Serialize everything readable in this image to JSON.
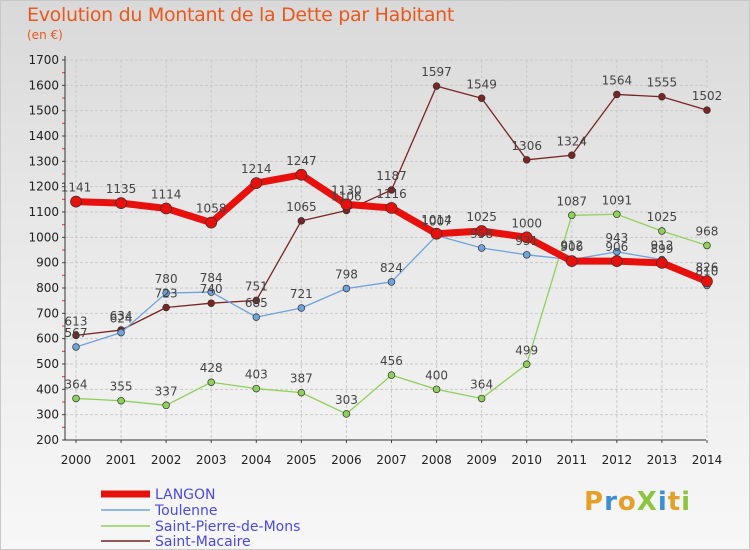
{
  "header": {
    "title": "Evolution du Montant de la Dette par Habitant",
    "subtitle": "(en €)"
  },
  "logo": {
    "text": "ProXiti",
    "letters": [
      {
        "ch": "P",
        "color": "#e5a02a"
      },
      {
        "ch": "r",
        "color": "#3d8fd0"
      },
      {
        "ch": "o",
        "color": "#e5a02a"
      },
      {
        "ch": "X",
        "color": "#8cc63e"
      },
      {
        "ch": "i",
        "color": "#3d8fd0"
      },
      {
        "ch": "t",
        "color": "#e5a02a"
      },
      {
        "ch": "i",
        "color": "#8cc63e"
      }
    ]
  },
  "chart_data": {
    "type": "line",
    "title": "Evolution du Montant de la Dette par Habitant",
    "subtitle": "(en €)",
    "x": [
      "2000",
      "2001",
      "2002",
      "2003",
      "2004",
      "2005",
      "2006",
      "2007",
      "2008",
      "2009",
      "2010",
      "2011",
      "2012",
      "2013",
      "2014"
    ],
    "ylim": [
      200,
      1700
    ],
    "yticks": [
      200,
      300,
      400,
      500,
      600,
      700,
      800,
      900,
      1000,
      1100,
      1200,
      1300,
      1400,
      1500,
      1600,
      1700
    ],
    "grid": true,
    "legend_position": "bottom-left",
    "series": [
      {
        "name": "LANGON",
        "color": "#e8100c",
        "values": [
          1141,
          1135,
          1114,
          1058,
          1214,
          1247,
          1130,
          1116,
          1014,
          1025,
          1000,
          906,
          906,
          899,
          826
        ]
      },
      {
        "name": "Toulenne",
        "color": "#6ea3dc",
        "values": [
          567,
          624,
          780,
          784,
          685,
          721,
          798,
          824,
          1007,
          958,
          931,
          912,
          943,
          912,
          810
        ]
      },
      {
        "name": "Saint-Pierre-de-Mons",
        "color": "#8fd05a",
        "values": [
          364,
          355,
          337,
          428,
          403,
          387,
          303,
          456,
          400,
          364,
          499,
          1087,
          1091,
          1025,
          968
        ]
      },
      {
        "name": "Saint-Macaire",
        "color": "#7a2424",
        "values": [
          613,
          634,
          723,
          740,
          751,
          1065,
          1106,
          1187,
          1597,
          1549,
          1306,
          1324,
          1564,
          1555,
          1502
        ]
      }
    ]
  }
}
